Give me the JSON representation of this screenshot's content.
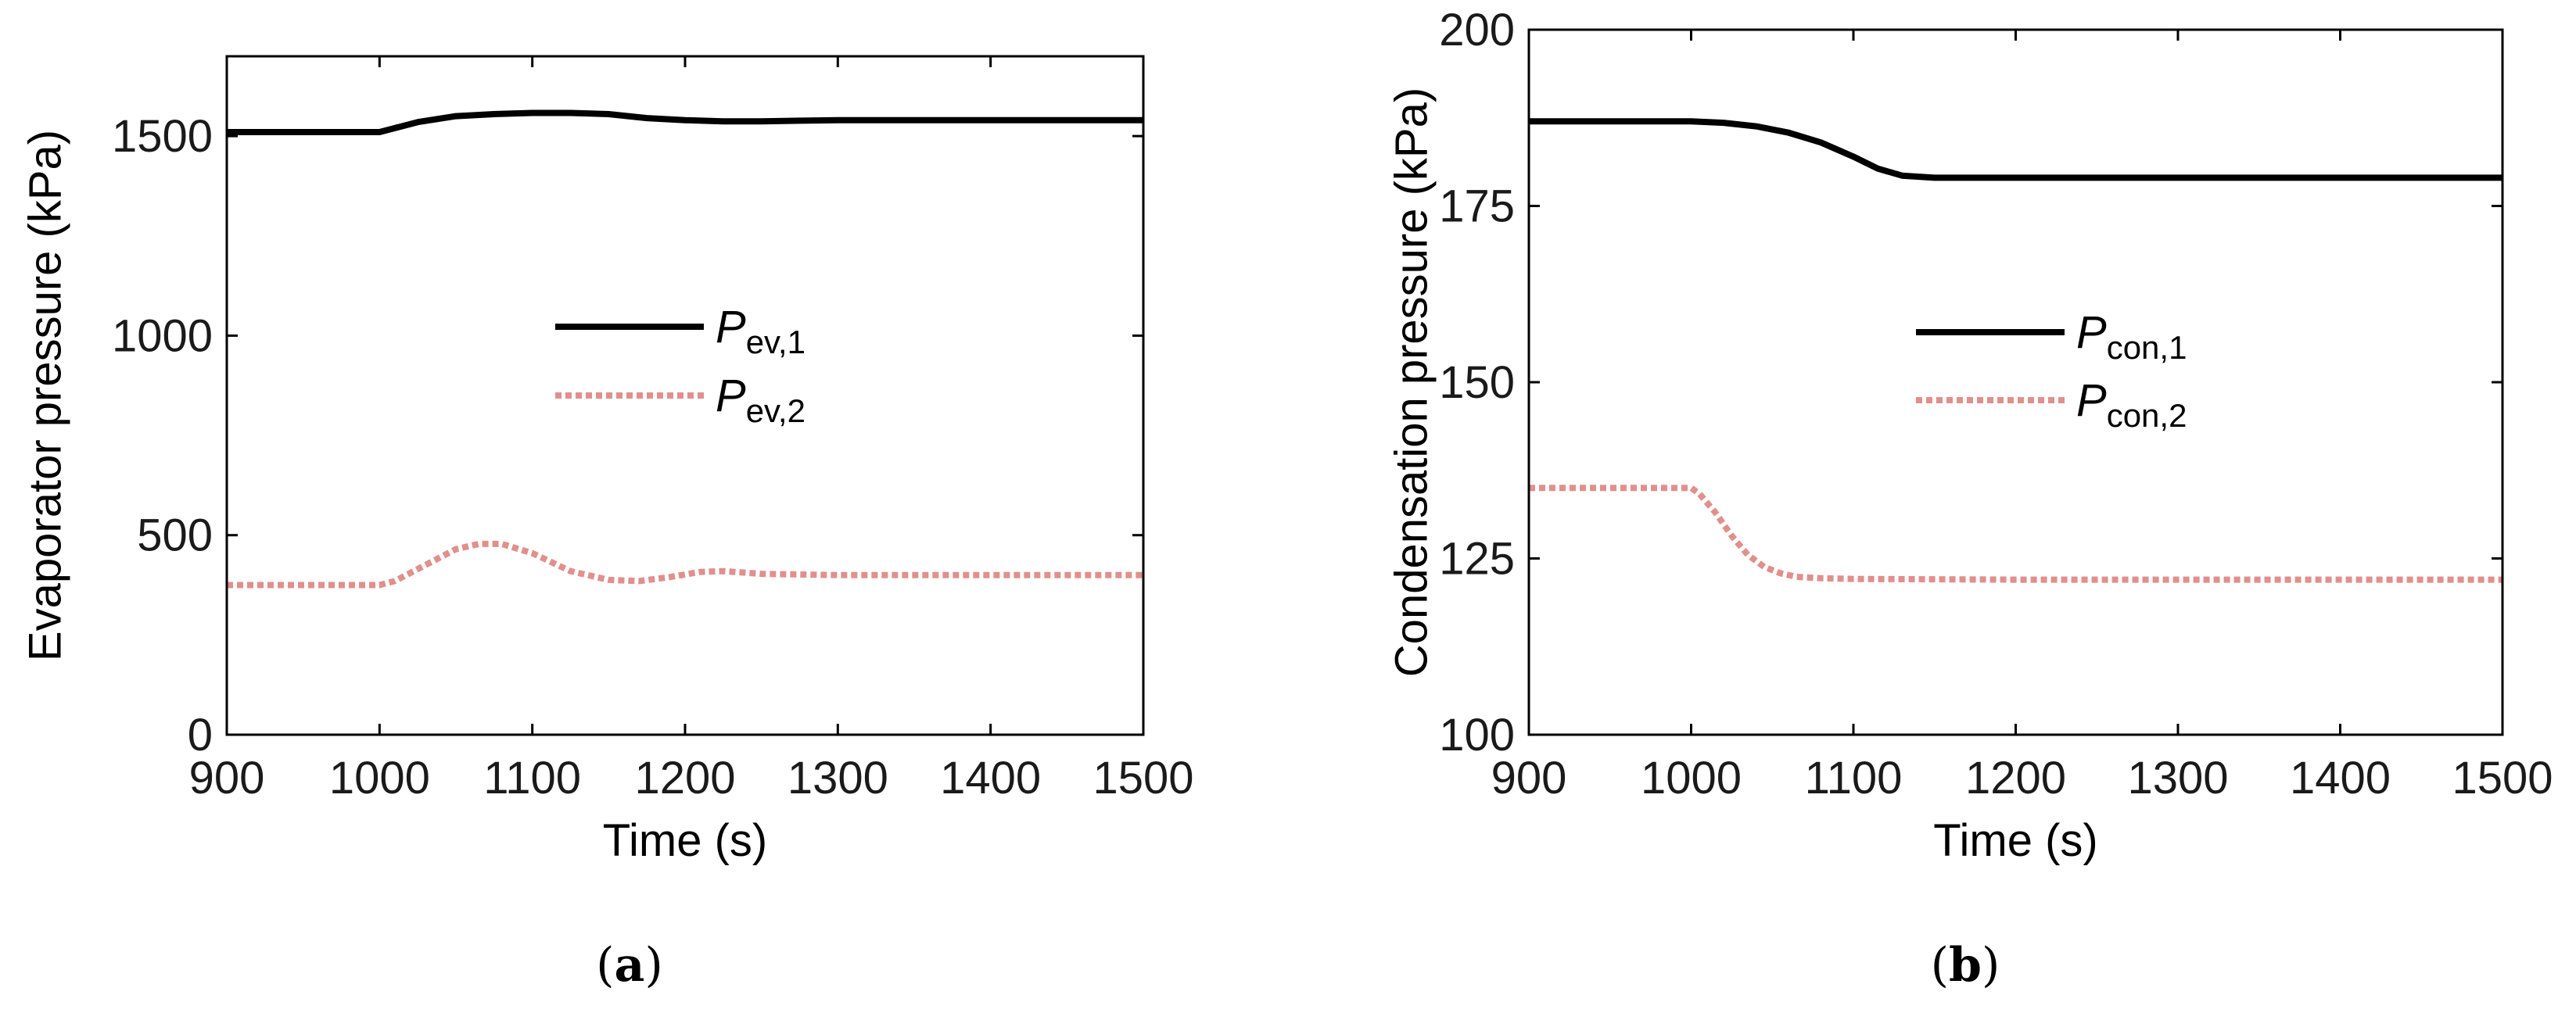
{
  "chart_data": [
    {
      "type": "line",
      "panel_label": "a",
      "xlabel": "Time (s)",
      "ylabel": "Evaporator pressure (kPa)",
      "xlim": [
        900,
        1500
      ],
      "ylim": [
        0,
        1700
      ],
      "xticks": [
        900,
        1000,
        1100,
        1200,
        1300,
        1400,
        1500
      ],
      "yticks": [
        0,
        500,
        1000,
        1500
      ],
      "grid": false,
      "legend_position": "center",
      "series": [
        {
          "name_main": "P",
          "name_sub": "ev,1",
          "color": "#000000",
          "style": "solid",
          "x": [
            900,
            1000,
            1010,
            1025,
            1050,
            1075,
            1100,
            1125,
            1150,
            1175,
            1200,
            1225,
            1250,
            1300,
            1400,
            1500
          ],
          "y": [
            1510,
            1510,
            1520,
            1535,
            1550,
            1555,
            1558,
            1558,
            1555,
            1545,
            1540,
            1537,
            1537,
            1540,
            1540,
            1540
          ]
        },
        {
          "name_main": "P",
          "name_sub": "ev,2",
          "color": "#e0908c",
          "style": "dotted",
          "x": [
            900,
            1000,
            1010,
            1030,
            1050,
            1065,
            1080,
            1100,
            1125,
            1150,
            1170,
            1190,
            1210,
            1225,
            1250,
            1300,
            1400,
            1500
          ],
          "y": [
            375,
            375,
            385,
            425,
            465,
            478,
            478,
            455,
            410,
            388,
            385,
            395,
            408,
            410,
            403,
            400,
            400,
            400
          ]
        }
      ]
    },
    {
      "type": "line",
      "panel_label": "b",
      "xlabel": "Time (s)",
      "ylabel": "Condensation pressure (kPa)",
      "xlim": [
        900,
        1500
      ],
      "ylim": [
        100,
        200
      ],
      "xticks": [
        900,
        1000,
        1100,
        1200,
        1300,
        1400,
        1500
      ],
      "yticks": [
        100,
        125,
        150,
        175,
        200
      ],
      "grid": false,
      "legend_position": "center",
      "series": [
        {
          "name_main": "P",
          "name_sub": "con,1",
          "color": "#000000",
          "style": "solid",
          "x": [
            900,
            1000,
            1020,
            1040,
            1060,
            1080,
            1100,
            1115,
            1130,
            1150,
            1200,
            1300,
            1400,
            1500
          ],
          "y": [
            187,
            187,
            186.8,
            186.3,
            185.4,
            184,
            182,
            180.3,
            179.3,
            179,
            179,
            179,
            179,
            179
          ]
        },
        {
          "name_main": "P",
          "name_sub": "con,2",
          "color": "#e0908c",
          "style": "dotted",
          "x": [
            900,
            1000,
            1005,
            1015,
            1025,
            1035,
            1045,
            1055,
            1065,
            1080,
            1100,
            1200,
            1300,
            1400,
            1500
          ],
          "y": [
            135,
            135,
            134.2,
            131.5,
            128.2,
            125.5,
            123.8,
            122.9,
            122.4,
            122.2,
            122.1,
            122,
            122,
            122,
            122
          ]
        }
      ]
    }
  ]
}
